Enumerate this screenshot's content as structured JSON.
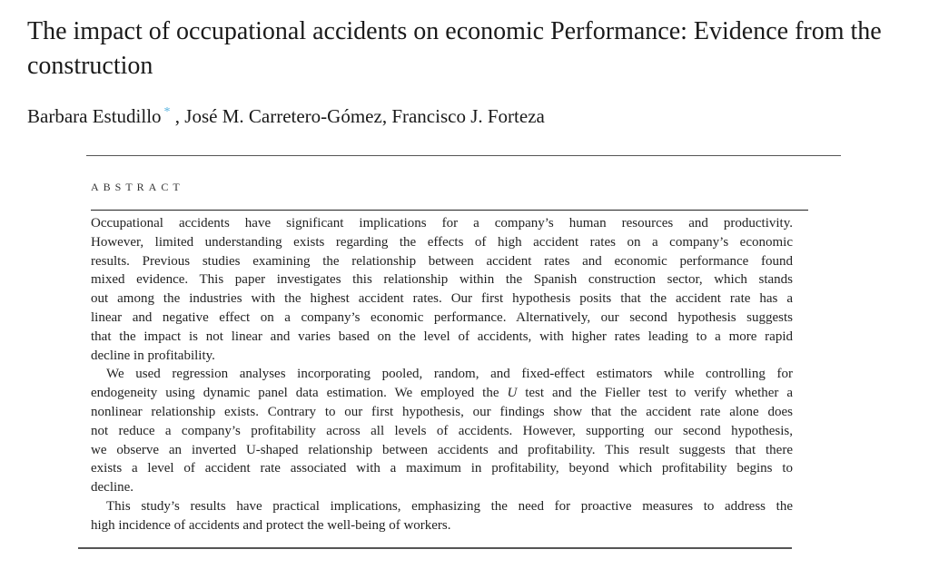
{
  "article": {
    "title": "The impact of occupational accidents on economic Performance: Evidence from the construction",
    "authors": [
      {
        "name": "Barbara Estudillo",
        "corresponding_mark": "*"
      },
      {
        "name": "José M. Carretero-Gómez"
      },
      {
        "name": "Francisco J. Forteza"
      }
    ],
    "abstract_heading": "ABSTRACT",
    "abstract_paragraphs": [
      [
        "Occupational accidents have significant implications for a company’s human resources and productivity.",
        "However, limited understanding exists regarding the effects of high accident rates on a company’s economic",
        "results. Previous studies examining the relationship between accident rates and economic performance found",
        "mixed evidence. This paper investigates this relationship within the Spanish construction sector, which stands",
        "out among the industries with the highest accident rates. Our first hypothesis posits that the accident rate has a",
        "linear and negative effect on a company’s economic performance. Alternatively, our second hypothesis suggests",
        "that the impact is not linear and varies based on the level of accidents, with higher rates leading to a more rapid",
        "decline in profitability."
      ],
      [
        "We used regression analyses incorporating pooled, random, and fixed-effect estimators while controlling for",
        [
          {
            "t": "endogeneity using dynamic panel data estimation. We employed the "
          },
          {
            "t": "U",
            "i": true
          },
          {
            "t": " test and the Fieller test to verify whether a"
          }
        ],
        "nonlinear relationship exists. Contrary to our first hypothesis, our findings show that the accident rate alone does",
        "not reduce a company’s profitability across all levels of accidents. However, supporting our second hypothesis,",
        "we observe an inverted U-shaped relationship between accidents and profitability. This result suggests that there",
        "exists a level of accident rate associated with a maximum in profitability, beyond which profitability begins to",
        "decline."
      ],
      [
        "This study’s results have practical implications, emphasizing the need for proactive measures to address the",
        "high incidence of accidents and protect the well-being of workers."
      ]
    ]
  }
}
